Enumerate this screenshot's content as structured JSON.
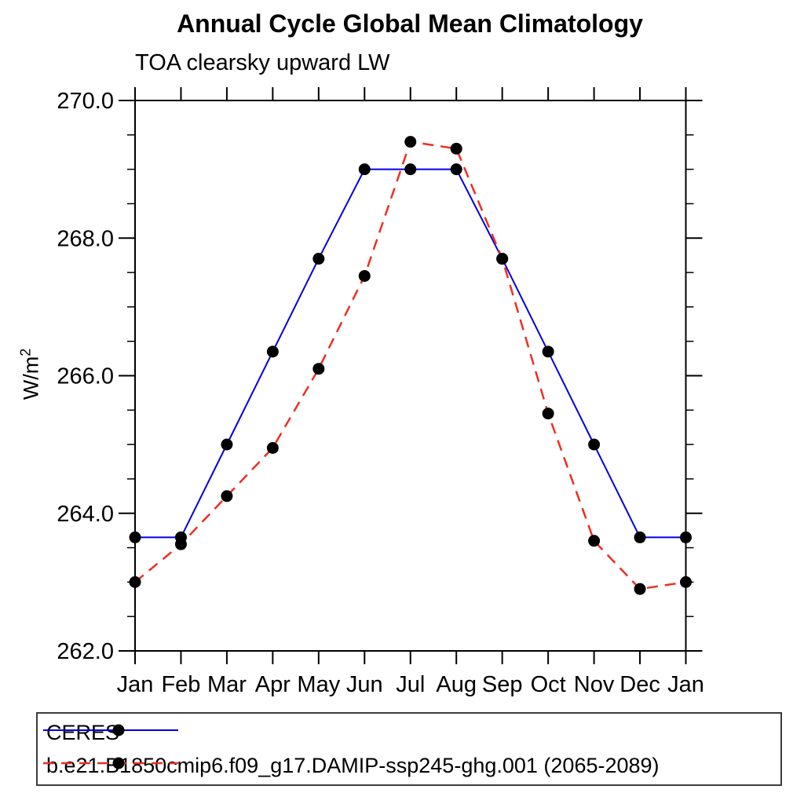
{
  "chart_data": {
    "type": "line",
    "title": "Annual Cycle Global Mean Climatology",
    "subtitle": "TOA clearsky upward LW",
    "ylabel": "W/m²",
    "xlabel": "",
    "categories": [
      "Jan",
      "Feb",
      "Mar",
      "Apr",
      "May",
      "Jun",
      "Jul",
      "Aug",
      "Sep",
      "Oct",
      "Nov",
      "Dec",
      "Jan"
    ],
    "ylim": [
      262.0,
      270.0
    ],
    "yticks_major": [
      262.0,
      264.0,
      266.0,
      268.0,
      270.0
    ],
    "ytick_decimals": 1,
    "y_minor_interval": 0.5,
    "grid": false,
    "legend_position": "bottom-left-box",
    "series": [
      {
        "name": "CERES",
        "color": "#0000e0",
        "line_style": "solid",
        "marker": "filled-circle",
        "marker_color": "#000000",
        "values": [
          263.65,
          263.65,
          265.0,
          266.35,
          267.7,
          269.0,
          269.0,
          269.0,
          267.7,
          266.35,
          265.0,
          263.65,
          263.65
        ]
      },
      {
        "name": "b.e21.B1850cmip6.f09_g17.DAMIP-ssp245-ghg.001 (2065-2089)",
        "color": "#ee2e24",
        "line_style": "dashed",
        "marker": "filled-circle",
        "marker_color": "#000000",
        "values": [
          263.0,
          263.55,
          264.25,
          264.95,
          266.1,
          267.45,
          269.4,
          269.3,
          267.7,
          265.45,
          263.6,
          262.9,
          263.0
        ]
      }
    ]
  },
  "y_axis": {
    "label_base": "W/m",
    "label_exp": "2"
  }
}
